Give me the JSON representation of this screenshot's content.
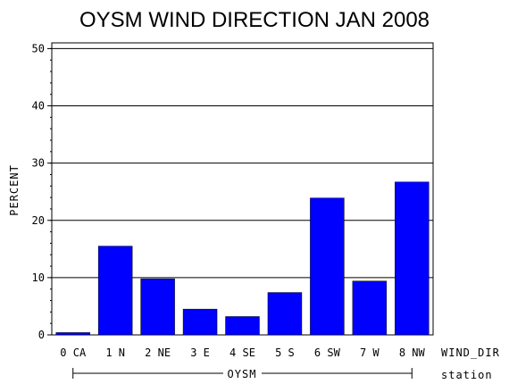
{
  "chart_data": {
    "type": "bar",
    "title": "OYSM WIND DIRECTION JAN 2008",
    "ylabel": "PERCENT",
    "xlabel": "WIND_DIR",
    "group_label_name": "station",
    "group_label": "OYSM",
    "categories": [
      "0 CA",
      "1 N",
      "2 NE",
      "3 E",
      "4 SE",
      "5 S",
      "6 SW",
      "7 W",
      "8 NW"
    ],
    "values": [
      0.4,
      15.5,
      9.8,
      4.5,
      3.2,
      7.4,
      23.9,
      9.4,
      26.7
    ],
    "ylim": [
      0,
      51
    ],
    "yticks": [
      0,
      10,
      20,
      30,
      40,
      50
    ],
    "ytick_labels": [
      "0",
      "10",
      "20",
      "30",
      "40",
      "50"
    ],
    "grid": true,
    "bar_color": "#0000ff"
  }
}
